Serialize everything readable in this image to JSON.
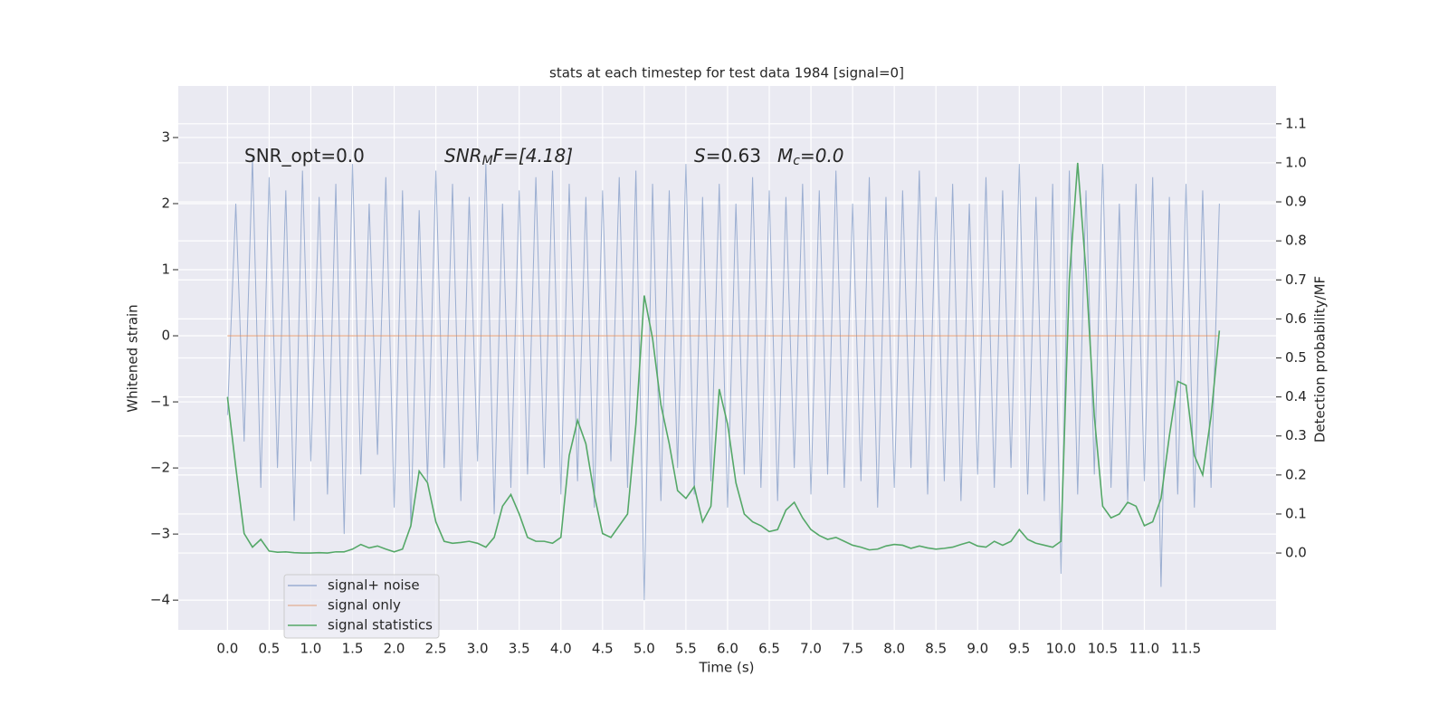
{
  "chart_data": {
    "type": "line",
    "title": "stats at each timestep for test data 1984 [signal=0]",
    "xlabel": "Time (s)",
    "ylabel": "Whitened strain",
    "y2label": "Detection probability/MF",
    "annotations": [
      {
        "text": "SNR_opt=0.0"
      },
      {
        "text": "SNR",
        "sub": "M",
        "after": "F=[4.18]"
      },
      {
        "text": "S",
        "after": "=0.63"
      },
      {
        "text": "M",
        "sub": "c",
        "after": "=0.0"
      }
    ],
    "x": [
      0.0,
      0.1,
      0.2,
      0.3,
      0.4,
      0.5,
      0.6,
      0.7,
      0.8,
      0.9,
      1.0,
      1.1,
      1.2,
      1.3,
      1.4,
      1.5,
      1.6,
      1.7,
      1.8,
      1.9,
      2.0,
      2.1,
      2.2,
      2.3,
      2.4,
      2.5,
      2.6,
      2.7,
      2.8,
      2.9,
      3.0,
      3.1,
      3.2,
      3.3,
      3.4,
      3.5,
      3.6,
      3.7,
      3.8,
      3.9,
      4.0,
      4.1,
      4.2,
      4.3,
      4.4,
      4.5,
      4.6,
      4.7,
      4.8,
      4.9,
      5.0,
      5.1,
      5.2,
      5.3,
      5.4,
      5.5,
      5.6,
      5.7,
      5.8,
      5.9,
      6.0,
      6.1,
      6.2,
      6.3,
      6.4,
      6.5,
      6.6,
      6.7,
      6.8,
      6.9,
      7.0,
      7.1,
      7.2,
      7.3,
      7.4,
      7.5,
      7.6,
      7.7,
      7.8,
      7.9,
      8.0,
      8.1,
      8.2,
      8.3,
      8.4,
      8.5,
      8.6,
      8.7,
      8.8,
      8.9,
      9.0,
      9.1,
      9.2,
      9.3,
      9.4,
      9.5,
      9.6,
      9.7,
      9.8,
      9.9,
      10.0,
      10.1,
      10.2,
      10.3,
      10.4,
      10.5,
      10.6,
      10.7,
      10.8,
      10.9,
      11.0,
      11.1,
      11.2,
      11.3,
      11.4,
      11.5,
      11.6,
      11.7,
      11.8,
      11.9
    ],
    "series": [
      {
        "name": "signal+ noise",
        "color": "#4c72b0",
        "opacity": 0.5,
        "values": [
          -1.2,
          2.0,
          -1.6,
          2.7,
          -2.3,
          2.4,
          -2.0,
          2.2,
          -2.8,
          2.5,
          -1.9,
          2.1,
          -2.4,
          2.3,
          -3.0,
          2.6,
          -2.1,
          2.0,
          -1.8,
          2.4,
          -2.6,
          2.2,
          -2.9,
          1.9,
          -2.2,
          2.5,
          -2.0,
          2.3,
          -2.5,
          2.1,
          -1.9,
          2.6,
          -2.7,
          2.0,
          -2.3,
          2.2,
          -2.1,
          2.4,
          -2.0,
          2.5,
          -2.4,
          2.3,
          -2.2,
          2.1,
          -2.6,
          2.2,
          -1.9,
          2.4,
          -2.3,
          2.5,
          -4.0,
          2.3,
          -2.5,
          2.2,
          -2.0,
          2.6,
          -2.4,
          2.1,
          -2.2,
          2.3,
          -2.6,
          2.0,
          -2.1,
          2.4,
          -2.3,
          2.2,
          -2.5,
          2.1,
          -2.0,
          2.3,
          -2.4,
          2.2,
          -2.1,
          2.5,
          -2.3,
          2.0,
          -2.2,
          2.4,
          -2.6,
          2.1,
          -2.3,
          2.2,
          -2.0,
          2.5,
          -2.4,
          2.1,
          -2.2,
          2.3,
          -2.5,
          2.0,
          -2.1,
          2.4,
          -2.3,
          2.2,
          -2.0,
          2.6,
          -2.4,
          2.1,
          -2.5,
          2.3,
          -3.6,
          2.5,
          -2.4,
          2.2,
          -2.1,
          2.6,
          -2.3,
          2.0,
          -2.5,
          2.3,
          -2.2,
          2.4,
          -3.8,
          2.1,
          -2.4,
          2.3,
          -2.6,
          2.2,
          -2.3,
          2.0
        ]
      },
      {
        "name": "signal only",
        "color": "#dd8452",
        "opacity": 0.5,
        "values": [
          0,
          0,
          0,
          0,
          0,
          0,
          0,
          0,
          0,
          0,
          0,
          0,
          0,
          0,
          0,
          0,
          0,
          0,
          0,
          0,
          0,
          0,
          0,
          0,
          0,
          0,
          0,
          0,
          0,
          0,
          0,
          0,
          0,
          0,
          0,
          0,
          0,
          0,
          0,
          0,
          0,
          0,
          0,
          0,
          0,
          0,
          0,
          0,
          0,
          0,
          0,
          0,
          0,
          0,
          0,
          0,
          0,
          0,
          0,
          0,
          0,
          0,
          0,
          0,
          0,
          0,
          0,
          0,
          0,
          0,
          0,
          0,
          0,
          0,
          0,
          0,
          0,
          0,
          0,
          0,
          0,
          0,
          0,
          0,
          0,
          0,
          0,
          0,
          0,
          0,
          0,
          0,
          0,
          0,
          0,
          0,
          0,
          0,
          0,
          0,
          0,
          0,
          0,
          0,
          0,
          0,
          0,
          0,
          0,
          0,
          0,
          0,
          0,
          0,
          0,
          0,
          0,
          0,
          0,
          0
        ]
      },
      {
        "name": "signal statistics",
        "color": "#55a868",
        "opacity": 1,
        "axis": "y2",
        "values": [
          0.4,
          0.22,
          0.05,
          0.015,
          0.035,
          0.005,
          0.002,
          0.003,
          0.001,
          0.0,
          0.0,
          0.001,
          0.0,
          0.003,
          0.003,
          0.01,
          0.022,
          0.013,
          0.018,
          0.01,
          0.003,
          0.01,
          0.07,
          0.21,
          0.18,
          0.08,
          0.03,
          0.025,
          0.027,
          0.03,
          0.025,
          0.015,
          0.04,
          0.12,
          0.15,
          0.1,
          0.04,
          0.03,
          0.03,
          0.025,
          0.04,
          0.25,
          0.34,
          0.28,
          0.15,
          0.05,
          0.04,
          0.07,
          0.1,
          0.33,
          0.66,
          0.55,
          0.38,
          0.28,
          0.16,
          0.14,
          0.17,
          0.08,
          0.12,
          0.42,
          0.33,
          0.18,
          0.1,
          0.08,
          0.07,
          0.055,
          0.06,
          0.11,
          0.13,
          0.09,
          0.06,
          0.045,
          0.035,
          0.04,
          0.03,
          0.02,
          0.015,
          0.008,
          0.01,
          0.018,
          0.022,
          0.02,
          0.012,
          0.018,
          0.013,
          0.01,
          0.012,
          0.015,
          0.022,
          0.028,
          0.018,
          0.015,
          0.03,
          0.02,
          0.03,
          0.06,
          0.035,
          0.025,
          0.02,
          0.015,
          0.03,
          0.7,
          1.0,
          0.72,
          0.35,
          0.12,
          0.09,
          0.1,
          0.13,
          0.12,
          0.07,
          0.08,
          0.14,
          0.3,
          0.44,
          0.43,
          0.25,
          0.2,
          0.35,
          0.57
        ]
      }
    ],
    "xlim": [
      -0.59,
      12.58
    ],
    "xticks": [
      {
        "value": 0,
        "label": "0.0"
      },
      0.5,
      {
        "value": 1,
        "label": "1.0"
      },
      1.5,
      {
        "value": 2,
        "label": "2.0"
      },
      2.5,
      {
        "value": 3,
        "label": "3.0"
      },
      3.5,
      {
        "value": 4,
        "label": "4.0"
      },
      4.5,
      {
        "value": 5,
        "label": "5.0"
      },
      5.5,
      {
        "value": 6,
        "label": "6.0"
      },
      6.5,
      {
        "value": 7,
        "label": "7.0"
      },
      7.5,
      {
        "value": 8,
        "label": "8.0"
      },
      8.5,
      {
        "value": 9,
        "label": "9.0"
      },
      9.5,
      {
        "value": 10,
        "label": "10.0"
      },
      10.5,
      {
        "value": 11,
        "label": "11.0"
      },
      11.5
    ],
    "ylim": [
      -4.45,
      3.78
    ],
    "yticks": [
      {
        "value": -4,
        "label": "−4"
      },
      {
        "value": -3,
        "label": "−3"
      },
      {
        "value": -2,
        "label": "−2"
      },
      {
        "value": -1,
        "label": "−1"
      },
      0,
      1,
      2,
      3
    ],
    "y2lim": [
      -0.197,
      1.197
    ],
    "y2ticks": [
      {
        "value": 0,
        "label": "0.0"
      },
      0.1,
      0.2,
      0.3,
      0.4,
      0.5,
      0.6,
      0.7,
      0.8,
      0.9,
      {
        "value": 1,
        "label": "1.0"
      },
      1.1
    ],
    "grid": true,
    "legend": "lower left",
    "background": "#eaeaf2"
  }
}
